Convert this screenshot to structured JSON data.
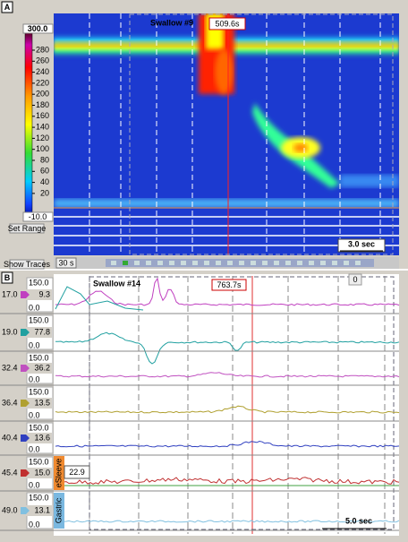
{
  "panel_a": {
    "label": "A",
    "colorbar": {
      "max": "300.0",
      "ticks": [
        "280",
        "260",
        "240",
        "220",
        "200",
        "180",
        "160",
        "140",
        "120",
        "100",
        "80",
        "60",
        "40",
        "20"
      ],
      "min": "-10.0"
    },
    "buttons": [
      "Set Range",
      "Show Traces"
    ],
    "swallow": "Swallow #9",
    "time": "509.6s",
    "scale": "3.0 sec",
    "zoom": "30 s"
  },
  "panel_b": {
    "label": "B",
    "swallow": "Swallow #14",
    "time": "763.7s",
    "marker": "0",
    "scale": "5.0 sec",
    "channels": [
      {
        "position": "17.0",
        "value": "9.3",
        "max": "150.0",
        "min": "0.0"
      },
      {
        "position": "19.0",
        "value": "77.8",
        "max": "150.0",
        "min": "0.0"
      },
      {
        "position": "32.4",
        "value": "36.2",
        "max": "150.0",
        "min": "0.0"
      },
      {
        "position": "36.4",
        "value": "13.5",
        "max": "150.0",
        "min": "0.0"
      },
      {
        "position": "40.4",
        "value": "13.6",
        "max": "150.0",
        "min": "0.0"
      },
      {
        "position": "45.4",
        "value": "15.0",
        "max": "150.0",
        "min": "0.0"
      },
      {
        "position": "49.0",
        "value": "13.1",
        "max": "150.0",
        "min": "0.0"
      }
    ],
    "esleeve": {
      "label": "eSleeve",
      "value": "22.9"
    },
    "gastric": "Gastric"
  }
}
